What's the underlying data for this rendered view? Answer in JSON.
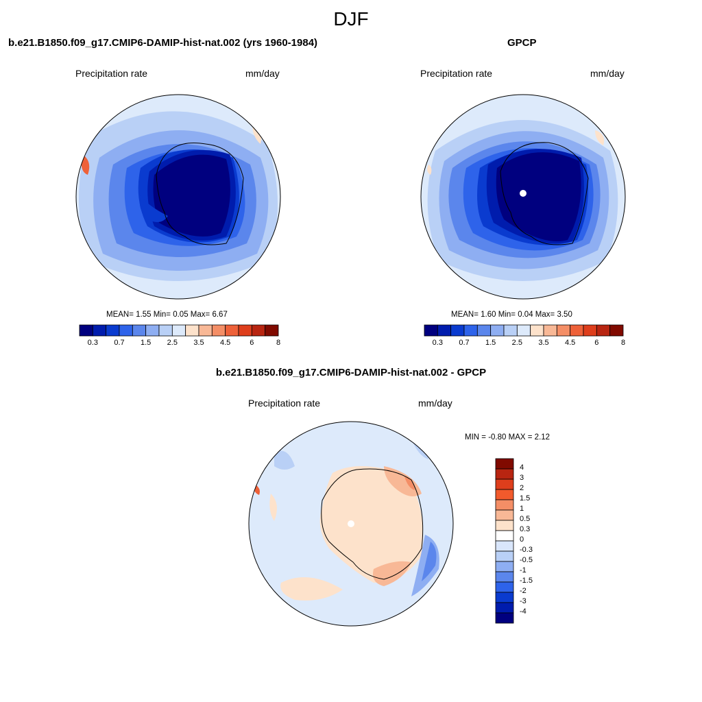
{
  "title": "DJF",
  "panels": {
    "left": {
      "title": "b.e21.B1850.f09_g17.CMIP6-DAMIP-hist-nat.002 (yrs 1960-1984)",
      "variable": "Precipitation rate",
      "units": "mm/day",
      "stats": {
        "mean_label": "MEAN=",
        "mean": "1.55",
        "min_label": "Min=",
        "min": "0.05",
        "max_label": "Max=",
        "max": "6.67"
      }
    },
    "right": {
      "title": "GPCP",
      "variable": "Precipitation rate",
      "units": "mm/day",
      "stats": {
        "mean_label": "MEAN=",
        "mean": "1.60",
        "min_label": "Min=",
        "min": "0.04",
        "max_label": "Max=",
        "max": "3.50"
      }
    },
    "diff": {
      "title": "b.e21.B1850.f09_g17.CMIP6-DAMIP-hist-nat.002 - GPCP",
      "variable": "Precipitation rate",
      "units": "mm/day",
      "stats": {
        "min_label": "MIN =",
        "min": "-0.80",
        "max_label": "MAX =",
        "max": "2.12"
      }
    }
  },
  "chart_data": [
    {
      "type": "heatmap",
      "panel": "left",
      "projection": "south-polar stereographic",
      "colorbar": {
        "orientation": "horizontal",
        "colors": [
          "#00007f",
          "#001cad",
          "#0a3bcf",
          "#2e63ea",
          "#5b86ec",
          "#8eaef2",
          "#b9d0f6",
          "#ddeafb",
          "#fde2cb",
          "#f8b896",
          "#f48e66",
          "#ee6139",
          "#de3e1c",
          "#b82511",
          "#800a00"
        ],
        "tick_labels": [
          "0.3",
          "0.7",
          "1.5",
          "2.5",
          "3.5",
          "4.5",
          "6",
          "8"
        ]
      }
    },
    {
      "type": "heatmap",
      "panel": "right",
      "projection": "south-polar stereographic",
      "colorbar": {
        "orientation": "horizontal",
        "colors": [
          "#00007f",
          "#001cad",
          "#0a3bcf",
          "#2e63ea",
          "#5b86ec",
          "#8eaef2",
          "#b9d0f6",
          "#ddeafb",
          "#fde2cb",
          "#f8b896",
          "#f48e66",
          "#ee6139",
          "#de3e1c",
          "#b82511",
          "#800a00"
        ],
        "tick_labels": [
          "0.3",
          "0.7",
          "1.5",
          "2.5",
          "3.5",
          "4.5",
          "6",
          "8"
        ]
      }
    },
    {
      "type": "heatmap",
      "panel": "diff",
      "projection": "south-polar stereographic",
      "colorbar": {
        "orientation": "vertical",
        "colors": [
          "#800a00",
          "#b82511",
          "#de3e1c",
          "#f25a2c",
          "#f48e66",
          "#f8b896",
          "#fde2cb",
          "#ffffff",
          "#d9e6fb",
          "#b9d0f6",
          "#8eaef2",
          "#5b86ec",
          "#2e63ea",
          "#0a3bcf",
          "#001cad",
          "#00007f"
        ],
        "tick_labels": [
          "4",
          "3",
          "2",
          "1.5",
          "1",
          "0.5",
          "0.3",
          "0",
          "-0.3",
          "-0.5",
          "-1",
          "-1.5",
          "-2",
          "-3",
          "-4"
        ]
      }
    }
  ]
}
